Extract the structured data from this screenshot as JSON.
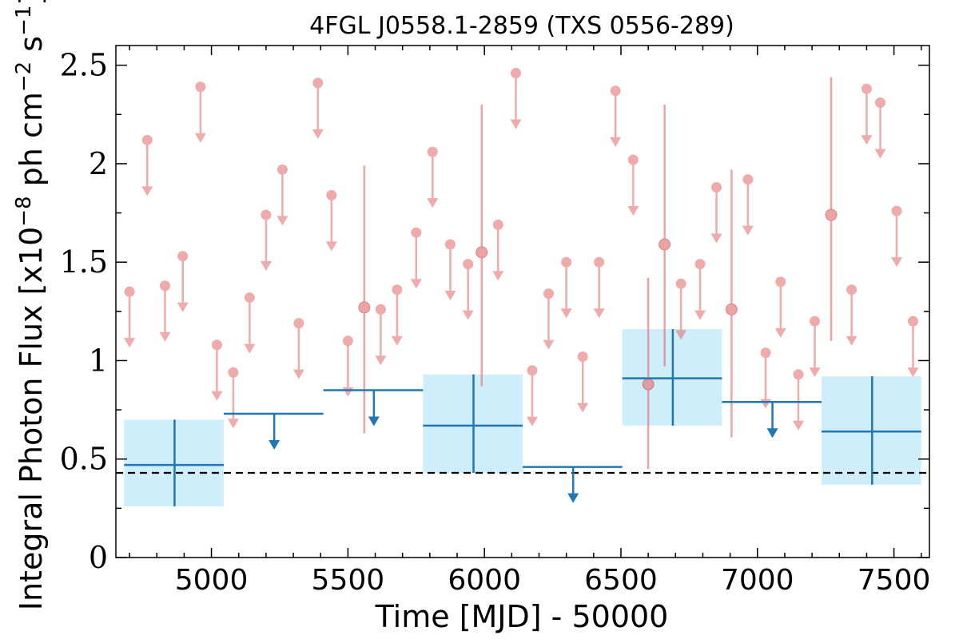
{
  "chart_data": {
    "type": "scatter",
    "title": "4FGL J0558.1-2859 (TXS 0556-289)",
    "xlabel": "Time [MJD] - 50000",
    "ylabel": "Integral Photon Flux [x10^-8 ph cm^-2 s^-1]",
    "ylabel_parts": {
      "main": "Integral Photon Flux [x10",
      "exp1": "−8",
      "mid": " ph cm",
      "exp2": "−2",
      "mid2": " s",
      "exp3": "−1",
      "end": "]"
    },
    "xlim": [
      4650,
      7630
    ],
    "ylim": [
      0,
      2.6
    ],
    "xticks": [
      5000,
      5500,
      6000,
      6500,
      7000,
      7500
    ],
    "xtick_labels": [
      "5000",
      "5500",
      "6000",
      "6500",
      "7000",
      "7500"
    ],
    "yticks": [
      0,
      0.5,
      1,
      1.5,
      2,
      2.5
    ],
    "ytick_labels": [
      "0",
      "0.5",
      "1",
      "1.5",
      "2",
      "2.5"
    ],
    "grid": false,
    "reference_line": {
      "y": 0.43,
      "style": "dashed",
      "color": "#000000"
    },
    "colors": {
      "short_bins": "#e57373",
      "long_bins": "#1f77b4",
      "long_bins_fill": "#cfeefc"
    },
    "series": [
      {
        "kind": "short_bin_upper_limits",
        "points": [
          {
            "x": 4700,
            "y": 1.35
          },
          {
            "x": 4765,
            "y": 2.12
          },
          {
            "x": 4830,
            "y": 1.38
          },
          {
            "x": 4895,
            "y": 1.53
          },
          {
            "x": 4960,
            "y": 2.39
          },
          {
            "x": 5020,
            "y": 1.08
          },
          {
            "x": 5080,
            "y": 0.94
          },
          {
            "x": 5140,
            "y": 1.32
          },
          {
            "x": 5200,
            "y": 1.74
          },
          {
            "x": 5260,
            "y": 1.97
          },
          {
            "x": 5320,
            "y": 1.19
          },
          {
            "x": 5390,
            "y": 2.41
          },
          {
            "x": 5440,
            "y": 1.84
          },
          {
            "x": 5500,
            "y": 1.1
          },
          {
            "x": 5620,
            "y": 1.26
          },
          {
            "x": 5680,
            "y": 1.36
          },
          {
            "x": 5750,
            "y": 1.65
          },
          {
            "x": 5810,
            "y": 2.06
          },
          {
            "x": 5875,
            "y": 1.59
          },
          {
            "x": 5940,
            "y": 1.49
          },
          {
            "x": 6050,
            "y": 1.69
          },
          {
            "x": 6115,
            "y": 2.46
          },
          {
            "x": 6175,
            "y": 0.95
          },
          {
            "x": 6235,
            "y": 1.34
          },
          {
            "x": 6300,
            "y": 1.5
          },
          {
            "x": 6360,
            "y": 1.02
          },
          {
            "x": 6420,
            "y": 1.5
          },
          {
            "x": 6480,
            "y": 2.37
          },
          {
            "x": 6545,
            "y": 2.02
          },
          {
            "x": 6720,
            "y": 1.39
          },
          {
            "x": 6790,
            "y": 1.49
          },
          {
            "x": 6850,
            "y": 1.88
          },
          {
            "x": 6965,
            "y": 1.92
          },
          {
            "x": 7030,
            "y": 1.04
          },
          {
            "x": 7085,
            "y": 1.4
          },
          {
            "x": 7150,
            "y": 0.93
          },
          {
            "x": 7210,
            "y": 1.2
          },
          {
            "x": 7345,
            "y": 1.36
          },
          {
            "x": 7400,
            "y": 2.38
          },
          {
            "x": 7450,
            "y": 2.31
          },
          {
            "x": 7510,
            "y": 1.76
          },
          {
            "x": 7570,
            "y": 1.2
          }
        ]
      },
      {
        "kind": "short_bin_detections",
        "points": [
          {
            "x": 5560,
            "y": 1.27,
            "ylo": 0.63,
            "yhi": 1.99
          },
          {
            "x": 5990,
            "y": 1.55,
            "ylo": 0.87,
            "yhi": 2.3
          },
          {
            "x": 6600,
            "y": 0.88,
            "ylo": 0.45,
            "yhi": 1.42
          },
          {
            "x": 6660,
            "y": 1.59,
            "ylo": 0.97,
            "yhi": 2.3
          },
          {
            "x": 6905,
            "y": 1.26,
            "ylo": 0.61,
            "yhi": 1.97
          },
          {
            "x": 7270,
            "y": 1.74,
            "ylo": 1.1,
            "yhi": 2.44
          }
        ]
      },
      {
        "kind": "long_bin_detections",
        "points": [
          {
            "x": 4865,
            "xlo": 4680,
            "xhi": 5045,
            "y": 0.47,
            "ylo": 0.26,
            "yhi": 0.7
          },
          {
            "x": 5960,
            "xlo": 5775,
            "xhi": 6140,
            "y": 0.67,
            "ylo": 0.43,
            "yhi": 0.93
          },
          {
            "x": 6690,
            "xlo": 6505,
            "xhi": 6870,
            "y": 0.91,
            "ylo": 0.67,
            "yhi": 1.16
          },
          {
            "x": 7420,
            "xlo": 7235,
            "xhi": 7600,
            "y": 0.64,
            "ylo": 0.37,
            "yhi": 0.92
          }
        ]
      },
      {
        "kind": "long_bin_upper_limits",
        "points": [
          {
            "x": 5230,
            "xlo": 5045,
            "xhi": 5410,
            "y": 0.73
          },
          {
            "x": 5595,
            "xlo": 5410,
            "xhi": 5775,
            "y": 0.85
          },
          {
            "x": 6325,
            "xlo": 6140,
            "xhi": 6505,
            "y": 0.46
          },
          {
            "x": 7055,
            "xlo": 6870,
            "xhi": 7235,
            "y": 0.79
          }
        ]
      }
    ]
  }
}
